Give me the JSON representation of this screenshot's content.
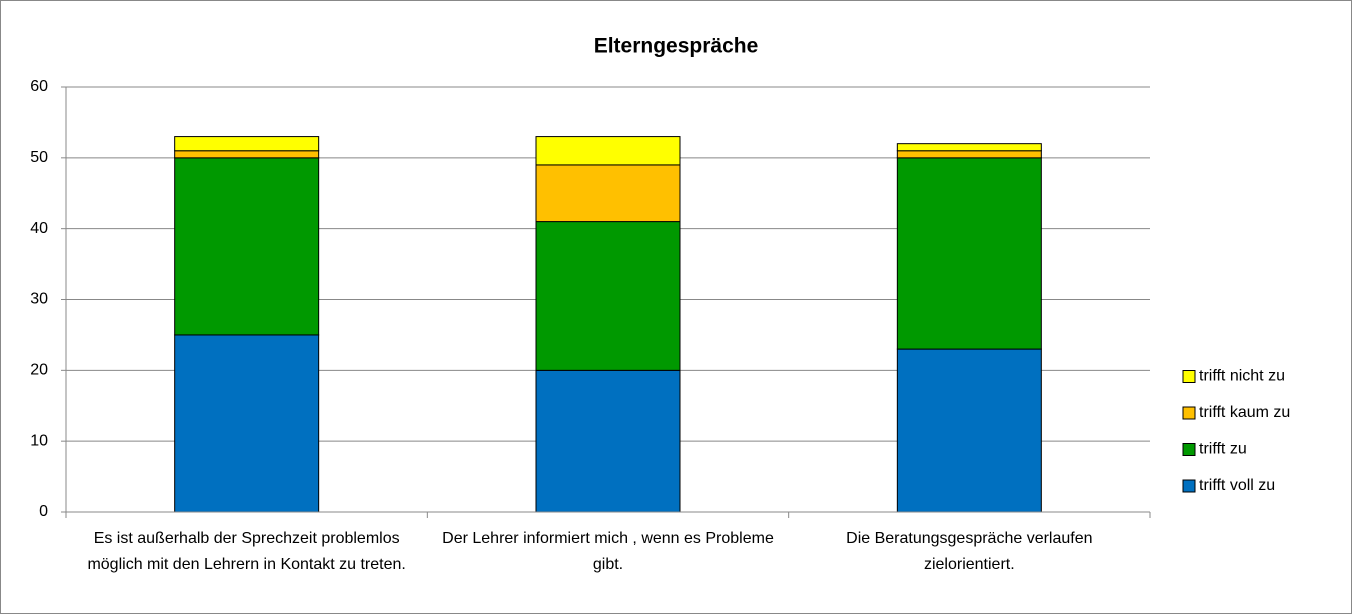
{
  "chart_data": {
    "type": "stacked_bar",
    "title": "Elterngespräche",
    "categories": [
      "Es ist außerhalb der Sprechzeit problemlos möglich mit den Lehrern in Kontakt zu treten.",
      "Der Lehrer informiert mich , wenn es Probleme gibt.",
      "Die Beratungsgespräche verlaufen zielorientiert."
    ],
    "series": [
      {
        "name": "trifft voll zu",
        "color": "#0070c0",
        "values": [
          25,
          20,
          23
        ]
      },
      {
        "name": "trifft zu",
        "color": "#009900",
        "values": [
          25,
          21,
          27
        ]
      },
      {
        "name": "trifft kaum zu",
        "color": "#ffc000",
        "values": [
          1,
          8,
          1
        ]
      },
      {
        "name": "trifft nicht zu",
        "color": "#ffff00",
        "values": [
          2,
          4,
          1
        ]
      }
    ],
    "ylim": [
      0,
      60
    ],
    "yticks": [
      0,
      10,
      20,
      30,
      40,
      50,
      60
    ],
    "grid": true,
    "legend": "right"
  }
}
